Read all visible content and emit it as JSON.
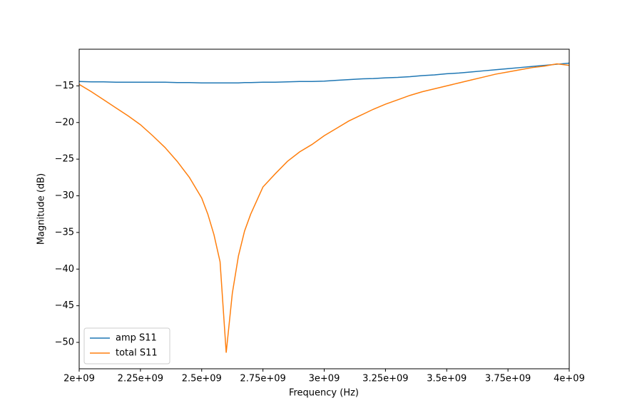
{
  "chart_data": {
    "type": "line",
    "xlabel": "Frequency (Hz)",
    "ylabel": "Magnitude (dB)",
    "x": [
      2000000000,
      2050000000,
      2100000000,
      2150000000,
      2200000000,
      2250000000,
      2300000000,
      2350000000,
      2400000000,
      2450000000,
      2500000000,
      2525000000,
      2550000000,
      2575000000,
      2600000000,
      2625000000,
      2650000000,
      2675000000,
      2700000000,
      2750000000,
      2800000000,
      2850000000,
      2900000000,
      2950000000,
      3000000000,
      3050000000,
      3100000000,
      3150000000,
      3200000000,
      3250000000,
      3300000000,
      3350000000,
      3400000000,
      3450000000,
      3500000000,
      3550000000,
      3600000000,
      3650000000,
      3700000000,
      3750000000,
      3800000000,
      3850000000,
      3900000000,
      3950000000,
      4000000000
    ],
    "series": [
      {
        "name": "amp S11",
        "color": "#1f77b4",
        "values": [
          -14.4,
          -14.45,
          -14.45,
          -14.5,
          -14.5,
          -14.5,
          -14.5,
          -14.5,
          -14.55,
          -14.55,
          -14.6,
          -14.6,
          -14.6,
          -14.6,
          -14.6,
          -14.6,
          -14.6,
          -14.55,
          -14.55,
          -14.5,
          -14.5,
          -14.45,
          -14.4,
          -14.4,
          -14.35,
          -14.25,
          -14.15,
          -14.05,
          -14.0,
          -13.9,
          -13.85,
          -13.75,
          -13.6,
          -13.5,
          -13.35,
          -13.25,
          -13.1,
          -12.95,
          -12.8,
          -12.65,
          -12.5,
          -12.35,
          -12.2,
          -12.05,
          -11.9
        ]
      },
      {
        "name": "total S11",
        "color": "#ff7f0e",
        "values": [
          -14.8,
          -15.8,
          -16.9,
          -18.0,
          -19.1,
          -20.3,
          -21.8,
          -23.4,
          -25.3,
          -27.5,
          -30.3,
          -32.5,
          -35.3,
          -39.0,
          -51.4,
          -43.3,
          -38.2,
          -34.8,
          -32.5,
          -28.8,
          -27.0,
          -25.3,
          -24.0,
          -23.0,
          -21.8,
          -20.8,
          -19.8,
          -19.0,
          -18.2,
          -17.5,
          -16.9,
          -16.3,
          -15.8,
          -15.4,
          -15.0,
          -14.6,
          -14.2,
          -13.8,
          -13.4,
          -13.1,
          -12.8,
          -12.5,
          -12.3,
          -12.0,
          -12.2
        ]
      }
    ],
    "xlim": [
      2000000000,
      4000000000
    ],
    "xticks": [
      {
        "value": 2000000000,
        "label": "2e+09"
      },
      {
        "value": 2250000000,
        "label": "2.25e+09"
      },
      {
        "value": 2500000000,
        "label": "2.5e+09"
      },
      {
        "value": 2750000000,
        "label": "2.75e+09"
      },
      {
        "value": 3000000000,
        "label": "3e+09"
      },
      {
        "value": 3250000000,
        "label": "3.25e+09"
      },
      {
        "value": 3500000000,
        "label": "3.5e+09"
      },
      {
        "value": 3750000000,
        "label": "3.75e+09"
      },
      {
        "value": 4000000000,
        "label": "4e+09"
      }
    ],
    "ylim": [
      -53.6,
      -10.0
    ],
    "yticks": [
      {
        "value": -50,
        "label": "−50"
      },
      {
        "value": -45,
        "label": "−45"
      },
      {
        "value": -40,
        "label": "−40"
      },
      {
        "value": -35,
        "label": "−35"
      },
      {
        "value": -30,
        "label": "−30"
      },
      {
        "value": -25,
        "label": "−25"
      },
      {
        "value": -20,
        "label": "−20"
      },
      {
        "value": -15,
        "label": "−15"
      }
    ],
    "legend": "lower left",
    "grid": false
  }
}
